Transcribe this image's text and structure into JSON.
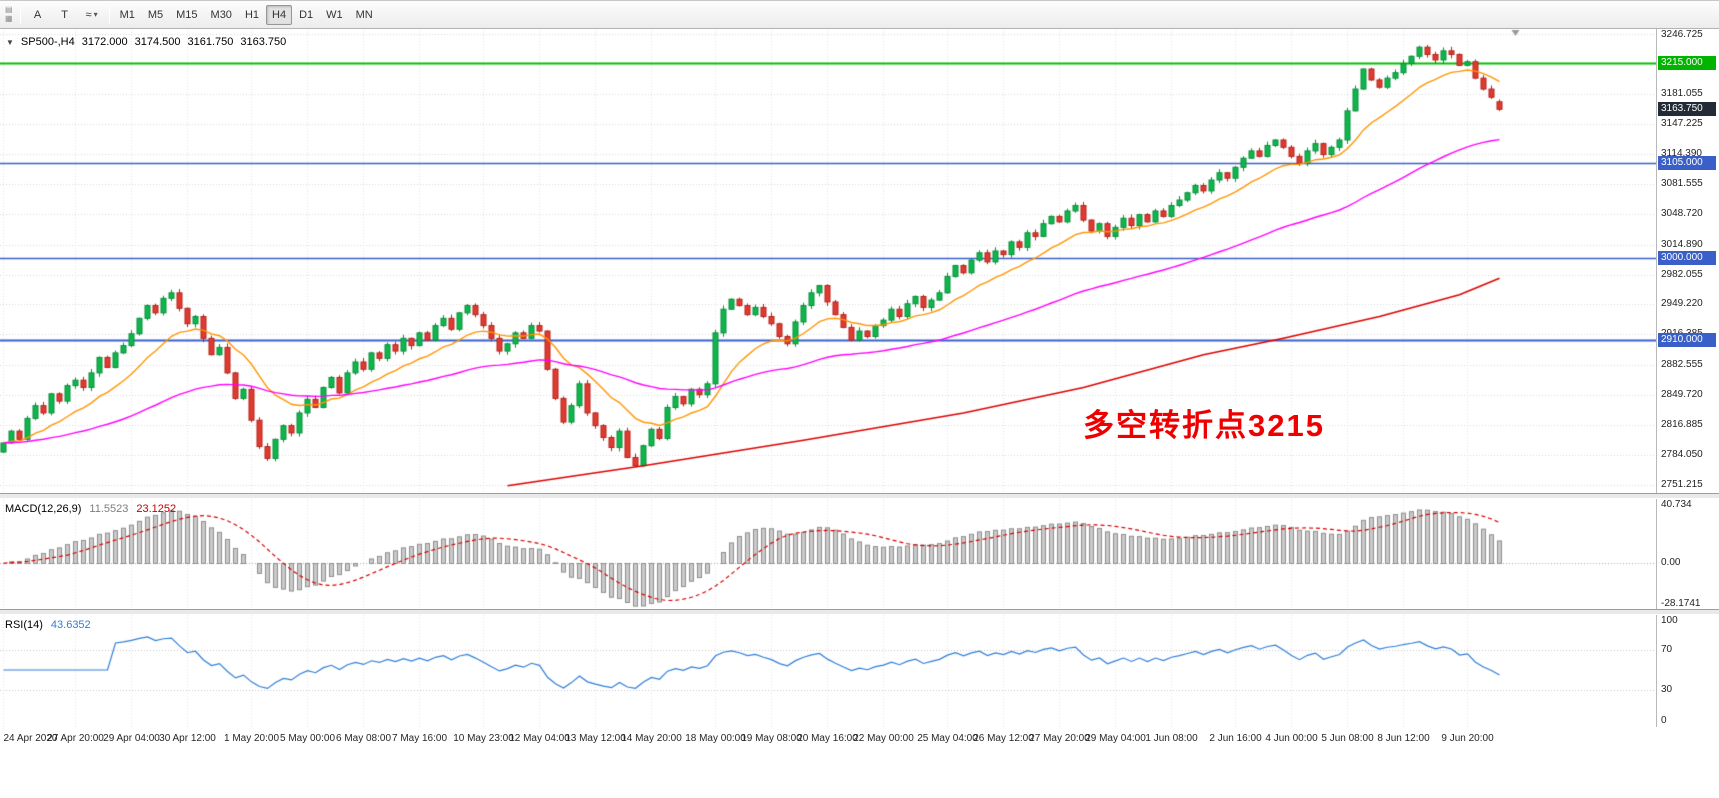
{
  "toolbar": {
    "dock_icons": [
      {
        "name": "chart-window-icon",
        "glyph": "▤"
      },
      {
        "name": "chart-grid-icon",
        "glyph": "▦"
      }
    ],
    "tools": [
      {
        "name": "cursor-tool",
        "label": "A"
      },
      {
        "name": "text-tool",
        "label": "T"
      },
      {
        "name": "indicators-tool",
        "label": "≈",
        "caret": "▾"
      }
    ],
    "timeframes": [
      {
        "label": "M1"
      },
      {
        "label": "M5"
      },
      {
        "label": "M15"
      },
      {
        "label": "M30"
      },
      {
        "label": "H1"
      },
      {
        "label": "H4",
        "active": true
      },
      {
        "label": "D1"
      },
      {
        "label": "W1"
      },
      {
        "label": "MN"
      }
    ]
  },
  "header": {
    "icon": "▼",
    "symbol_tf": "SP500-,H4",
    "open": "3172.000",
    "high": "3174.500",
    "low": "3161.750",
    "close": "3163.750"
  },
  "annotation": {
    "text": "多空转折点3215",
    "color": "#ee0000"
  },
  "price_axis": {
    "plain_labels": [
      {
        "text": "3246.725",
        "price": 3246.725
      },
      {
        "text": "3181.055",
        "price": 3181.055
      },
      {
        "text": "3147.225",
        "price": 3147.225
      },
      {
        "text": "3114.390",
        "price": 3114.39
      },
      {
        "text": "3081.555",
        "price": 3081.555
      },
      {
        "text": "3048.720",
        "price": 3048.72
      },
      {
        "text": "3014.890",
        "price": 3014.89
      },
      {
        "text": "2982.055",
        "price": 2982.055
      },
      {
        "text": "2949.220",
        "price": 2949.22
      },
      {
        "text": "2916.385",
        "price": 2916.385
      },
      {
        "text": "2882.555",
        "price": 2882.555
      },
      {
        "text": "2849.720",
        "price": 2849.72
      },
      {
        "text": "2816.885",
        "price": 2816.885
      },
      {
        "text": "2784.050",
        "price": 2784.05
      },
      {
        "text": "2751.215",
        "price": 2751.215
      }
    ],
    "tags": [
      {
        "text": "3215.000",
        "price": 3215.0,
        "bg": "#00b400"
      },
      {
        "text": "3163.750",
        "price": 3163.75,
        "bg": "#222b36"
      },
      {
        "text": "3105.000",
        "price": 3105.0,
        "bg": "#3a5fc8"
      },
      {
        "text": "3000.000",
        "price": 3000.0,
        "bg": "#3a5fc8"
      },
      {
        "text": "2910.000",
        "price": 2910.0,
        "bg": "#3a5fc8"
      }
    ]
  },
  "macd": {
    "title": "MACD(12,26,9)",
    "value_main": "11.5523",
    "value_signal": "23.1252",
    "params": {
      "fast": 12,
      "slow": 26,
      "signal": 9
    },
    "scale": {
      "min": -32,
      "max": 45
    },
    "axis_labels": [
      {
        "text": "40.734",
        "v": 40.734
      },
      {
        "text": "0.00",
        "v": 0
      },
      {
        "text": "-28.1741",
        "v": -28.1741
      }
    ]
  },
  "rsi": {
    "title": "RSI(14)",
    "value": "43.6352",
    "period": 14,
    "levels": [
      30,
      70
    ],
    "scale": {
      "min": 0,
      "max": 100
    },
    "axis_labels": [
      {
        "text": "100",
        "v": 100
      },
      {
        "text": "70",
        "v": 70
      },
      {
        "text": "30",
        "v": 30
      },
      {
        "text": "0",
        "v": 0
      }
    ]
  },
  "chart_data": {
    "type": "candlestick",
    "title": "SP500-,H4",
    "xlabel": "",
    "ylabel": "",
    "bars_total_slots": 207,
    "price_range": {
      "min": 2742,
      "max": 3252
    },
    "ohlc_current": {
      "open": 3172.0,
      "high": 3174.5,
      "low": 3161.75,
      "close": 3163.75
    },
    "closes": [
      2797,
      2810,
      2801,
      2824,
      2838,
      2830,
      2851,
      2843,
      2860,
      2866,
      2858,
      2874,
      2891,
      2880,
      2896,
      2904,
      2917,
      2934,
      2948,
      2940,
      2956,
      2962,
      2945,
      2928,
      2936,
      2912,
      2894,
      2902,
      2874,
      2846,
      2856,
      2822,
      2793,
      2780,
      2801,
      2816,
      2808,
      2830,
      2845,
      2836,
      2858,
      2869,
      2852,
      2874,
      2886,
      2878,
      2896,
      2890,
      2905,
      2898,
      2912,
      2904,
      2918,
      2910,
      2926,
      2934,
      2922,
      2940,
      2948,
      2938,
      2926,
      2912,
      2898,
      2906,
      2918,
      2912,
      2926,
      2920,
      2878,
      2846,
      2820,
      2838,
      2862,
      2830,
      2816,
      2803,
      2792,
      2810,
      2781,
      2772,
      2794,
      2812,
      2802,
      2836,
      2848,
      2840,
      2856,
      2850,
      2862,
      2918,
      2944,
      2955,
      2948,
      2938,
      2946,
      2936,
      2928,
      2914,
      2906,
      2930,
      2948,
      2962,
      2970,
      2952,
      2938,
      2924,
      2910,
      2920,
      2914,
      2926,
      2932,
      2944,
      2936,
      2950,
      2958,
      2946,
      2954,
      2962,
      2980,
      2992,
      2984,
      2998,
      3006,
      2996,
      3008,
      3004,
      3018,
      3012,
      3028,
      3024,
      3038,
      3046,
      3040,
      3052,
      3058,
      3042,
      3030,
      3038,
      3024,
      3034,
      3044,
      3036,
      3048,
      3040,
      3052,
      3046,
      3058,
      3064,
      3072,
      3080,
      3074,
      3086,
      3094,
      3088,
      3100,
      3110,
      3118,
      3112,
      3124,
      3130,
      3122,
      3112,
      3104,
      3118,
      3126,
      3114,
      3122,
      3130,
      3162,
      3186,
      3208,
      3196,
      3188,
      3198,
      3204,
      3214,
      3222,
      3232,
      3224,
      3218,
      3228,
      3224,
      3212,
      3216,
      3198,
      3186,
      3177,
      3163.75
    ],
    "x_labels": [
      {
        "text": "24 Apr 2020",
        "bar": 0
      },
      {
        "text": "27 Apr 20:00",
        "bar": 9
      },
      {
        "text": "29 Apr 04:00",
        "bar": 16
      },
      {
        "text": "30 Apr 12:00",
        "bar": 23
      },
      {
        "text": "1 May 20:00",
        "bar": 31
      },
      {
        "text": "5 May 00:00",
        "bar": 38
      },
      {
        "text": "6 May 08:00",
        "bar": 45
      },
      {
        "text": "7 May 16:00",
        "bar": 52
      },
      {
        "text": "10 May 23:00",
        "bar": 60
      },
      {
        "text": "12 May 04:00",
        "bar": 67
      },
      {
        "text": "13 May 12:00",
        "bar": 74
      },
      {
        "text": "14 May 20:00",
        "bar": 81
      },
      {
        "text": "18 May 00:00",
        "bar": 89
      },
      {
        "text": "19 May 08:00",
        "bar": 96
      },
      {
        "text": "20 May 16:00",
        "bar": 103
      },
      {
        "text": "22 May 00:00",
        "bar": 110
      },
      {
        "text": "25 May 04:00",
        "bar": 118
      },
      {
        "text": "26 May 12:00",
        "bar": 125
      },
      {
        "text": "27 May 20:00",
        "bar": 132
      },
      {
        "text": "29 May 04:00",
        "bar": 139
      },
      {
        "text": "1 Jun 08:00",
        "bar": 146
      },
      {
        "text": "2 Jun 16:00",
        "bar": 154
      },
      {
        "text": "4 Jun 00:00",
        "bar": 161
      },
      {
        "text": "5 Jun 08:00",
        "bar": 168
      },
      {
        "text": "8 Jun 12:00",
        "bar": 175
      },
      {
        "text": "9 Jun 20:00",
        "bar": 183
      }
    ],
    "hlines": [
      {
        "price": 3215,
        "color": "#00c000",
        "width": 2
      },
      {
        "price": 3105,
        "color": "#3a5fc8",
        "width": 1.3
      },
      {
        "price": 3000,
        "color": "#3a5fc8",
        "width": 1.3
      },
      {
        "price": 2910,
        "color": "#3a5fc8",
        "width": 2
      }
    ],
    "moving_averages": {
      "fast": {
        "period": 13,
        "color": "#ff9500"
      },
      "mid": {
        "period": 55,
        "color": "#ff00ff"
      },
      "slow": {
        "color": "#dd0000",
        "anchors": [
          [
            63,
            2750
          ],
          [
            80,
            2772
          ],
          [
            100,
            2800
          ],
          [
            120,
            2830
          ],
          [
            135,
            2858
          ],
          [
            150,
            2894
          ],
          [
            160,
            2912
          ],
          [
            172,
            2936
          ],
          [
            182,
            2960
          ],
          [
            187,
            2978
          ]
        ]
      }
    },
    "colors": {
      "up_fill": "#10b54c",
      "up_stroke": "#0a8f3c",
      "down_fill": "#df3b30",
      "down_stroke": "#b3241d",
      "hist_fill": "#c9c9c9",
      "hist_stroke": "#8f8f8f",
      "signal": "#d40000",
      "rsi_line": "#2f7ed8"
    }
  }
}
